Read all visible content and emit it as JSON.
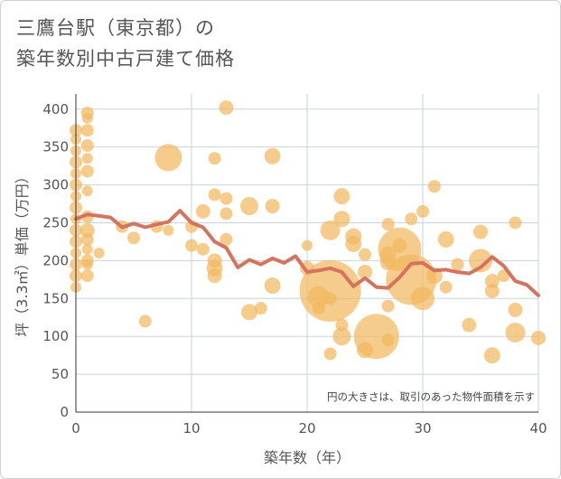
{
  "header": {
    "title_line1": "三鷹台駅（東京都）の",
    "title_line2": "築年数別中古戸建て価格"
  },
  "colors": {
    "bubble": "#f1b860",
    "line": "#d4735e",
    "grid": "#c8d3df"
  },
  "chart_data": {
    "type": "scatter",
    "title": "三鷹台駅（東京都）の築年数別中古戸建て価格",
    "xlabel": "築年数（年）",
    "ylabel": "坪（3.3㎡）単価（万円）",
    "xlim": [
      0,
      40
    ],
    "ylim": [
      0,
      420
    ],
    "x_ticks": [
      "0",
      "10",
      "20",
      "30",
      "40"
    ],
    "y_ticks": [
      "0",
      "50",
      "100",
      "150",
      "200",
      "250",
      "300",
      "350",
      "400"
    ],
    "grid": true,
    "note": "円の大きさは、取引のあった物件面積を示す",
    "series": [
      {
        "name": "取引事例",
        "kind": "bubble",
        "points": [
          [
            0,
            165,
            6
          ],
          [
            0,
            180,
            7
          ],
          [
            0,
            195,
            7
          ],
          [
            0,
            210,
            6
          ],
          [
            0,
            225,
            7
          ],
          [
            0,
            240,
            7
          ],
          [
            0,
            255,
            6
          ],
          [
            0,
            270,
            7
          ],
          [
            0,
            285,
            6
          ],
          [
            0,
            300,
            7
          ],
          [
            0,
            315,
            6
          ],
          [
            0,
            330,
            7
          ],
          [
            0,
            345,
            6
          ],
          [
            0,
            360,
            6
          ],
          [
            0,
            372,
            7
          ],
          [
            1,
            395,
            7
          ],
          [
            1,
            388,
            6
          ],
          [
            1,
            372,
            7
          ],
          [
            1,
            352,
            7
          ],
          [
            1,
            335,
            6
          ],
          [
            1,
            318,
            7
          ],
          [
            1,
            292,
            6
          ],
          [
            1,
            258,
            7
          ],
          [
            1,
            240,
            8
          ],
          [
            1,
            228,
            7
          ],
          [
            1,
            215,
            6
          ],
          [
            1,
            200,
            7
          ],
          [
            1,
            195,
            6
          ],
          [
            1,
            180,
            7
          ],
          [
            2,
            210,
            6
          ],
          [
            4,
            245,
            7
          ],
          [
            5,
            230,
            7
          ],
          [
            6,
            120,
            7
          ],
          [
            7,
            245,
            7
          ],
          [
            8,
            240,
            6
          ],
          [
            8,
            336,
            15
          ],
          [
            10,
            220,
            7
          ],
          [
            10,
            245,
            7
          ],
          [
            11,
            265,
            8
          ],
          [
            11,
            215,
            7
          ],
          [
            12,
            335,
            7
          ],
          [
            12,
            287,
            7
          ],
          [
            12,
            200,
            8
          ],
          [
            12,
            190,
            9
          ],
          [
            12,
            180,
            8
          ],
          [
            13,
            402,
            8
          ],
          [
            13,
            282,
            7
          ],
          [
            13,
            262,
            7
          ],
          [
            13,
            228,
            7
          ],
          [
            15,
            272,
            10
          ],
          [
            15,
            132,
            9
          ],
          [
            16,
            137,
            7
          ],
          [
            17,
            338,
            9
          ],
          [
            17,
            272,
            8
          ],
          [
            17,
            167,
            9
          ],
          [
            20,
            220,
            6
          ],
          [
            20,
            190,
            8
          ],
          [
            21,
            152,
            12
          ],
          [
            21,
            137,
            7
          ],
          [
            22,
            160,
            34
          ],
          [
            22,
            240,
            11
          ],
          [
            22,
            150,
            7
          ],
          [
            22,
            77,
            7
          ],
          [
            23,
            285,
            9
          ],
          [
            23,
            255,
            9
          ],
          [
            23,
            115,
            7
          ],
          [
            23,
            100,
            10
          ],
          [
            24,
            232,
            9
          ],
          [
            24,
            222,
            9
          ],
          [
            25,
            208,
            7
          ],
          [
            25,
            185,
            8
          ],
          [
            25,
            82,
            9
          ],
          [
            26,
            100,
            25
          ],
          [
            27,
            248,
            7
          ],
          [
            27,
            208,
            9
          ],
          [
            27,
            198,
            9
          ],
          [
            27,
            140,
            7
          ],
          [
            27,
            95,
            7
          ],
          [
            28,
            215,
            24
          ],
          [
            28,
            220,
            8
          ],
          [
            29,
            175,
            28
          ],
          [
            29,
            255,
            7
          ],
          [
            30,
            265,
            7
          ],
          [
            30,
            150,
            13
          ],
          [
            31,
            298,
            7
          ],
          [
            31,
            180,
            9
          ],
          [
            32,
            228,
            9
          ],
          [
            32,
            165,
            7
          ],
          [
            33,
            195,
            7
          ],
          [
            34,
            115,
            8
          ],
          [
            35,
            200,
            13
          ],
          [
            35,
            238,
            8
          ],
          [
            36,
            173,
            8
          ],
          [
            36,
            160,
            8
          ],
          [
            36,
            75,
            9
          ],
          [
            37,
            180,
            7
          ],
          [
            38,
            250,
            7
          ],
          [
            38,
            135,
            8
          ],
          [
            38,
            105,
            11
          ],
          [
            40,
            98,
            8
          ]
        ]
      },
      {
        "name": "平均坪単価",
        "kind": "line",
        "x": [
          0,
          1,
          2,
          3,
          4,
          5,
          6,
          7,
          8,
          9,
          10,
          11,
          12,
          13,
          14,
          15,
          16,
          17,
          18,
          19,
          20,
          21,
          22,
          23,
          24,
          25,
          26,
          27,
          28,
          29,
          30,
          31,
          32,
          33,
          34,
          35,
          36,
          37,
          38,
          39,
          40
        ],
        "y": [
          255,
          261,
          259,
          257,
          244,
          249,
          244,
          248,
          251,
          266,
          250,
          244,
          225,
          217,
          191,
          201,
          195,
          203,
          197,
          206,
          185,
          187,
          190,
          185,
          166,
          177,
          165,
          164,
          178,
          196,
          197,
          187,
          188,
          185,
          183,
          191,
          205,
          193,
          173,
          168,
          154
        ]
      }
    ]
  }
}
